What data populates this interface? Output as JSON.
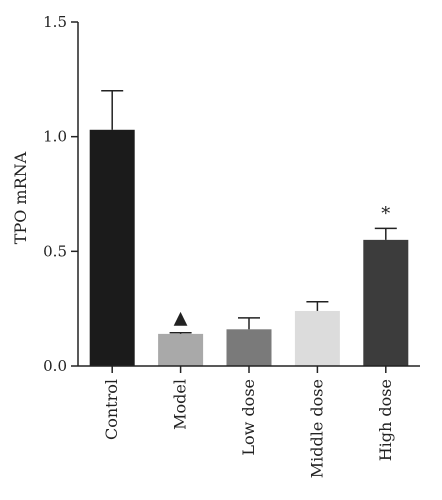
{
  "chart_data": {
    "type": "bar",
    "ylabel": "TPO mRNA",
    "ylim": [
      0,
      1.5
    ],
    "yticks": [
      "0.0",
      "0.5",
      "1.0",
      "1.5"
    ],
    "categories": [
      "Control",
      "Model",
      "Low dose",
      "Middle dose",
      "High dose"
    ],
    "values": [
      1.03,
      0.14,
      0.16,
      0.24,
      0.55
    ],
    "errors": [
      0.17,
      0.005,
      0.05,
      0.04,
      0.05
    ],
    "colors": [
      "#1b1b1b",
      "#a9a9a9",
      "#7a7a7a",
      "#dcdcdc",
      "#3c3c3c"
    ],
    "annotations": [
      "",
      "▲",
      "",
      "",
      "*"
    ]
  }
}
